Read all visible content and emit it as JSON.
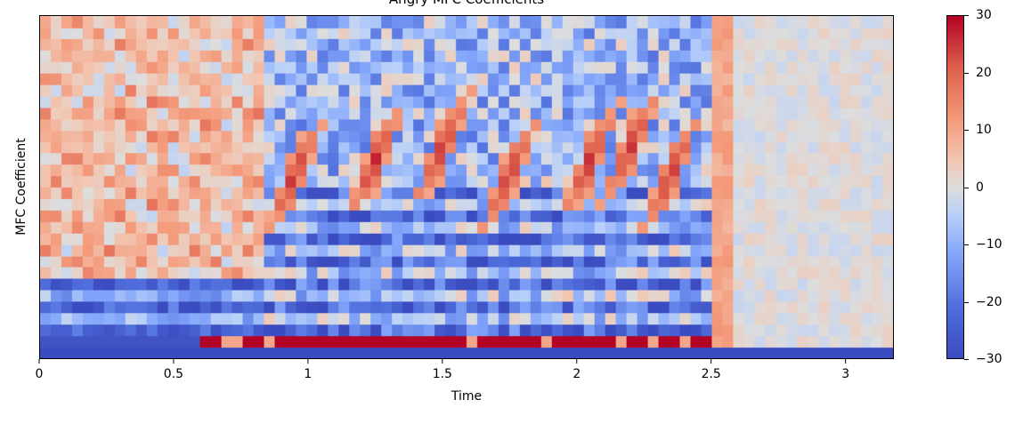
{
  "chart_data": {
    "type": "heatmap",
    "title": "Angry MFC Coefficients",
    "xlabel": "Time",
    "ylabel": "MFC Coefficient",
    "xlim": [
      0,
      3.18
    ],
    "x_ticks": [
      "0",
      "0.5",
      "1",
      "1.5",
      "2",
      "2.5",
      "3"
    ],
    "colorbar": {
      "ticks": [
        "30",
        "20",
        "10",
        "0",
        "−10",
        "−20",
        "−30"
      ],
      "range": [
        -30,
        30
      ],
      "colormap": "coolwarm",
      "low_color": "#3b4cc0",
      "mid_color": "#dddddd",
      "high_color": "#b40426"
    },
    "n_coefficients": 30,
    "n_frames": 80,
    "speech_end_time": 2.5,
    "features": {
      "coefficient_0_during_speech": -30,
      "coefficient_0_after_speech": -30,
      "coefficient_1_during_speech": 30,
      "after_speech_level": 0,
      "red_arcs_at_time": [
        0.95,
        1.25,
        1.5,
        1.75,
        2.05,
        2.2,
        2.35
      ]
    }
  }
}
